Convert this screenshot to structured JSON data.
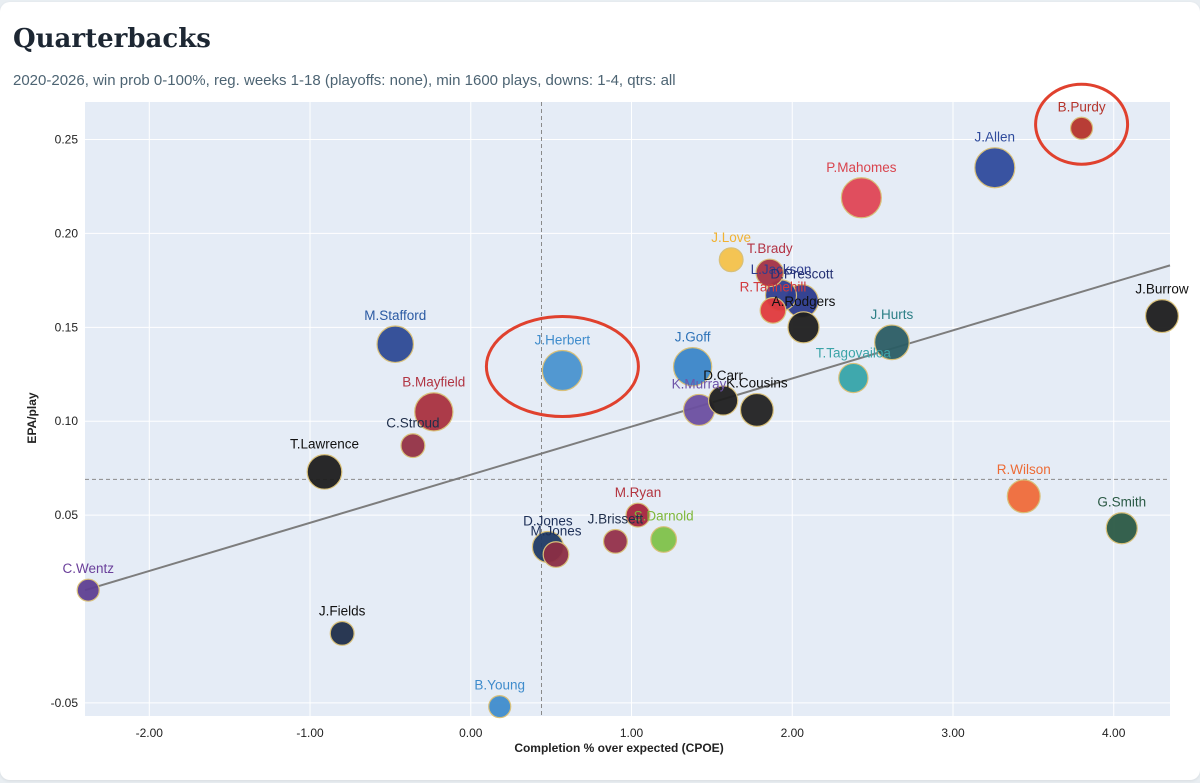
{
  "header": {
    "title": "Quarterbacks",
    "subtitle": "2020-2026, win prob 0-100%, reg. weeks 1-18 (playoffs: none), min 1600 plays, downs: 1-4, qtrs: all"
  },
  "chart_data": {
    "type": "scatter",
    "xlabel": "Completion % over expected (CPOE)",
    "ylabel": "EPA/play",
    "xlim": [
      -2.4,
      4.35
    ],
    "ylim": [
      -0.057,
      0.27
    ],
    "x_ticks": [
      "-2.00",
      "-1.00",
      "0.00",
      "1.00",
      "2.00",
      "3.00",
      "4.00"
    ],
    "x_tick_values": [
      -2,
      -1,
      0,
      1,
      2,
      3,
      4
    ],
    "y_ticks": [
      "-0.05",
      "0.05",
      "0.10",
      "0.15",
      "0.20",
      "0.25"
    ],
    "y_tick_values": [
      -0.05,
      0.05,
      0.1,
      0.15,
      0.2,
      0.25
    ],
    "grid": true,
    "reference_lines": {
      "x_mean": 0.44,
      "y_mean": 0.069
    },
    "trend_line": {
      "x1": -2.4,
      "y1": 0.01,
      "x2": 4.35,
      "y2": 0.183
    },
    "highlighted": [
      "J.Herbert",
      "B.Purdy"
    ],
    "points": [
      {
        "label": "B.Purdy",
        "x": 3.8,
        "y": 0.256,
        "size": 1.0,
        "color": "#b5342b",
        "label_color": "#b5342b"
      },
      {
        "label": "J.Allen",
        "x": 3.26,
        "y": 0.235,
        "size": 2.0,
        "color": "#2f4b9c",
        "label_color": "#2f4b9c"
      },
      {
        "label": "P.Mahomes",
        "x": 2.43,
        "y": 0.219,
        "size": 2.0,
        "color": "#df4655",
        "label_color": "#d9434d"
      },
      {
        "label": "J.Burrow",
        "x": 4.3,
        "y": 0.156,
        "size": 1.6,
        "color": "#1e1e1e",
        "label_color": "#111111"
      },
      {
        "label": "T.Brady",
        "x": 1.86,
        "y": 0.179,
        "size": 1.3,
        "color": "#a33244",
        "label_color": "#b33445"
      },
      {
        "label": "J.Love",
        "x": 1.62,
        "y": 0.186,
        "size": 1.1,
        "color": "#f4c24a",
        "label_color": "#f1b232"
      },
      {
        "label": "L.Jackson",
        "x": 1.93,
        "y": 0.167,
        "size": 1.5,
        "color": "#2f3e8f",
        "label_color": "#2f3e8f"
      },
      {
        "label": "D.Prescott",
        "x": 2.06,
        "y": 0.164,
        "size": 1.6,
        "color": "#2b3a8c",
        "label_color": "#243072"
      },
      {
        "label": "R.Tannehill",
        "x": 1.88,
        "y": 0.159,
        "size": 1.2,
        "color": "#e03a3c",
        "label_color": "#d13a3f"
      },
      {
        "label": "A.Rodgers",
        "x": 2.07,
        "y": 0.15,
        "size": 1.5,
        "color": "#1f1f1f",
        "label_color": "#111111"
      },
      {
        "label": "J.Hurts",
        "x": 2.62,
        "y": 0.142,
        "size": 1.7,
        "color": "#2b5d64",
        "label_color": "#2c7f86"
      },
      {
        "label": "T.Tagovailoa",
        "x": 2.38,
        "y": 0.123,
        "size": 1.4,
        "color": "#36a4a9",
        "label_color": "#3ba4a8"
      },
      {
        "label": "J.Goff",
        "x": 1.38,
        "y": 0.129,
        "size": 1.9,
        "color": "#3b86c8",
        "label_color": "#2d72b8"
      },
      {
        "label": "K.Cousins",
        "x": 1.78,
        "y": 0.106,
        "size": 1.6,
        "color": "#222222",
        "label_color": "#111111"
      },
      {
        "label": "D.Carr",
        "x": 1.57,
        "y": 0.111,
        "size": 1.4,
        "color": "#1f1f1f",
        "label_color": "#111111"
      },
      {
        "label": "K.Murray",
        "x": 1.42,
        "y": 0.106,
        "size": 1.5,
        "color": "#6b4fa0",
        "label_color": "#6f55a8"
      },
      {
        "label": "J.Herbert",
        "x": 0.57,
        "y": 0.127,
        "size": 2.0,
        "color": "#4a93cf",
        "label_color": "#3f8ccc"
      },
      {
        "label": "M.Stafford",
        "x": -0.47,
        "y": 0.141,
        "size": 1.8,
        "color": "#2d4a95",
        "label_color": "#2b5aa3"
      },
      {
        "label": "B.Mayfield",
        "x": -0.23,
        "y": 0.105,
        "size": 1.9,
        "color": "#a9313f",
        "label_color": "#b13442"
      },
      {
        "label": "C.Stroud",
        "x": -0.36,
        "y": 0.087,
        "size": 1.1,
        "color": "#933245",
        "label_color": "#1f2e4a"
      },
      {
        "label": "T.Lawrence",
        "x": -0.91,
        "y": 0.073,
        "size": 1.7,
        "color": "#1d1d1d",
        "label_color": "#111111"
      },
      {
        "label": "R.Wilson",
        "x": 3.44,
        "y": 0.06,
        "size": 1.6,
        "color": "#ef6b3a",
        "label_color": "#ed6b35"
      },
      {
        "label": "G.Smith",
        "x": 4.05,
        "y": 0.043,
        "size": 1.5,
        "color": "#2b5a45",
        "label_color": "#2b5a45"
      },
      {
        "label": "M.Ryan",
        "x": 1.04,
        "y": 0.05,
        "size": 1.1,
        "color": "#a6263d",
        "label_color": "#b3343f"
      },
      {
        "label": "S.Darnold",
        "x": 1.2,
        "y": 0.037,
        "size": 1.2,
        "color": "#7fc24a",
        "label_color": "#7fb83c"
      },
      {
        "label": "J.Brissett",
        "x": 0.9,
        "y": 0.036,
        "size": 1.1,
        "color": "#93304a",
        "label_color": "#1f2e4a"
      },
      {
        "label": "D.Jones",
        "x": 0.48,
        "y": 0.033,
        "size": 1.5,
        "color": "#1f3a64",
        "label_color": "#1e3058"
      },
      {
        "label": "M.Jones",
        "x": 0.53,
        "y": 0.029,
        "size": 1.2,
        "color": "#8b2e45",
        "label_color": "#1e3058"
      },
      {
        "label": "C.Wentz",
        "x": -2.38,
        "y": 0.01,
        "size": 1.0,
        "color": "#5e3f91",
        "label_color": "#6a3f9a"
      },
      {
        "label": "J.Fields",
        "x": -0.8,
        "y": -0.013,
        "size": 1.1,
        "color": "#1f2e4a",
        "label_color": "#111111"
      },
      {
        "label": "B.Young",
        "x": 0.18,
        "y": -0.052,
        "size": 1.0,
        "color": "#3f8ccc",
        "label_color": "#3f8ccc"
      }
    ]
  }
}
